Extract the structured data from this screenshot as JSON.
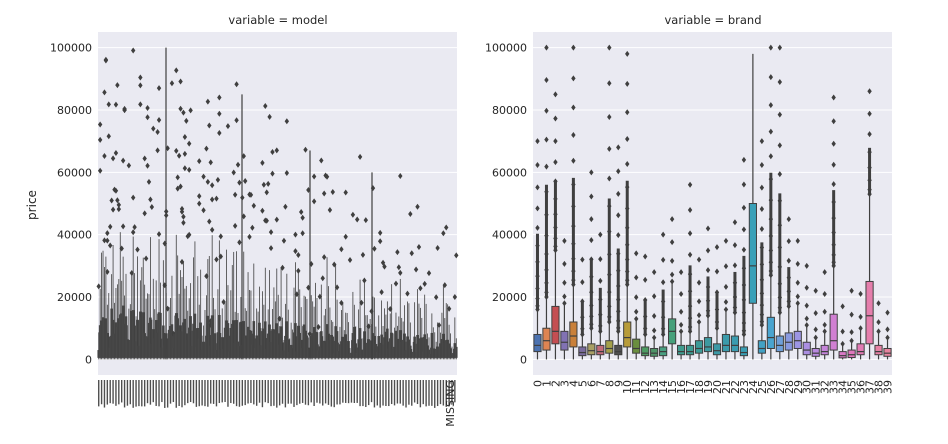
{
  "ylabel": "price",
  "chart_data": [
    {
      "type": "box",
      "title": "variable = model",
      "ylim": [
        -5000,
        105000
      ],
      "yticks": [
        0,
        20000,
        40000,
        60000,
        80000,
        100000
      ],
      "grid": true,
      "note": "several hundred overlapping boxes; x tick labels overlap and are illegible except the last",
      "xtick_last": "MISSING"
    },
    {
      "type": "box",
      "title": "variable = brand",
      "ylim": [
        -5000,
        105000
      ],
      "yticks": [
        0,
        20000,
        40000,
        60000,
        80000,
        100000
      ],
      "grid": true,
      "categories": [
        "0",
        "1",
        "2",
        "3",
        "4",
        "5",
        "6",
        "7",
        "8",
        "9",
        "10",
        "11",
        "12",
        "13",
        "14",
        "15",
        "16",
        "17",
        "18",
        "19",
        "20",
        "21",
        "22",
        "23",
        "24",
        "25",
        "26",
        "27",
        "28",
        "29",
        "30",
        "31",
        "32",
        "33",
        "34",
        "35",
        "36",
        "37",
        "38",
        "39"
      ],
      "boxes": [
        {
          "q1": 2500,
          "med": 4500,
          "q3": 8000,
          "whislo": 0,
          "whishi": 16000,
          "fliermax": 70000,
          "color": "#4c72b0"
        },
        {
          "q1": 3000,
          "med": 6000,
          "q3": 10000,
          "whislo": 0,
          "whishi": 20000,
          "fliermax": 100000,
          "color": "#dd8452"
        },
        {
          "q1": 5000,
          "med": 9000,
          "q3": 17000,
          "whislo": 0,
          "whishi": 35000,
          "fliermax": 85000,
          "color": "#c44e52"
        },
        {
          "q1": 3000,
          "med": 5500,
          "q3": 9000,
          "whislo": 0,
          "whishi": 18000,
          "fliermax": 38000,
          "color": "#8172b3"
        },
        {
          "q1": 4000,
          "med": 7500,
          "q3": 12000,
          "whislo": 0,
          "whishi": 24000,
          "fliermax": 100000,
          "color": "#c9803a"
        },
        {
          "q1": 1200,
          "med": 2200,
          "q3": 4000,
          "whislo": 0,
          "whishi": 8000,
          "fliermax": 32000,
          "color": "#7a6c9d"
        },
        {
          "q1": 1500,
          "med": 2800,
          "q3": 5000,
          "whislo": 0,
          "whishi": 10000,
          "fliermax": 60000,
          "color": "#a89f64"
        },
        {
          "q1": 1500,
          "med": 2500,
          "q3": 4500,
          "whislo": 0,
          "whishi": 9000,
          "fliermax": 40000,
          "color": "#c26b79"
        },
        {
          "q1": 2000,
          "med": 3500,
          "q3": 6000,
          "whislo": 0,
          "whishi": 12000,
          "fliermax": 100000,
          "color": "#a4a04a"
        },
        {
          "q1": 1500,
          "med": 2500,
          "q3": 4500,
          "whislo": 0,
          "whishi": 9000,
          "fliermax": 68000,
          "color": "#4f4f4f"
        },
        {
          "q1": 4000,
          "med": 7000,
          "q3": 12000,
          "whislo": 0,
          "whishi": 24000,
          "fliermax": 98000,
          "color": "#b79b3a"
        },
        {
          "q1": 2000,
          "med": 3500,
          "q3": 6500,
          "whislo": 0,
          "whishi": 13000,
          "fliermax": 34000,
          "color": "#6a8e3f"
        },
        {
          "q1": 1200,
          "med": 2000,
          "q3": 4000,
          "whislo": 0,
          "whishi": 8000,
          "fliermax": 33000,
          "color": "#4c9c62"
        },
        {
          "q1": 1000,
          "med": 2000,
          "q3": 3500,
          "whislo": 0,
          "whishi": 7000,
          "fliermax": 28000,
          "color": "#4f9468"
        },
        {
          "q1": 1200,
          "med": 2500,
          "q3": 4000,
          "whislo": 0,
          "whishi": 8000,
          "fliermax": 40000,
          "color": "#4aa081"
        },
        {
          "q1": 5000,
          "med": 9000,
          "q3": 13000,
          "whislo": 0,
          "whishi": 25000,
          "fliermax": 45000,
          "color": "#46a07b"
        },
        {
          "q1": 1500,
          "med": 2500,
          "q3": 4500,
          "whislo": 0,
          "whishi": 9000,
          "fliermax": 28000,
          "color": "#3f9c8f"
        },
        {
          "q1": 1500,
          "med": 2500,
          "q3": 4500,
          "whislo": 0,
          "whishi": 9000,
          "fliermax": 56000,
          "color": "#3e9b92"
        },
        {
          "q1": 2000,
          "med": 3500,
          "q3": 6000,
          "whislo": 0,
          "whishi": 12000,
          "fliermax": 32000,
          "color": "#3c9a97"
        },
        {
          "q1": 2500,
          "med": 4000,
          "q3": 7000,
          "whislo": 0,
          "whishi": 14000,
          "fliermax": 42000,
          "color": "#3d9aa0"
        },
        {
          "q1": 1500,
          "med": 2800,
          "q3": 5000,
          "whislo": 0,
          "whishi": 10000,
          "fliermax": 36000,
          "color": "#3c99a6"
        },
        {
          "q1": 2500,
          "med": 4500,
          "q3": 8000,
          "whislo": 0,
          "whishi": 16000,
          "fliermax": 38000,
          "color": "#3b9bab"
        },
        {
          "q1": 2500,
          "med": 4500,
          "q3": 7500,
          "whislo": 0,
          "whishi": 15000,
          "fliermax": 44000,
          "color": "#3b9cb0"
        },
        {
          "q1": 1200,
          "med": 2200,
          "q3": 4000,
          "whislo": 0,
          "whishi": 8000,
          "fliermax": 64000,
          "color": "#3a9eb4"
        },
        {
          "q1": 18000,
          "med": 30000,
          "q3": 50000,
          "whislo": 0,
          "whishi": 98000,
          "fliermax": 98000,
          "color": "#39a0b8"
        },
        {
          "q1": 2000,
          "med": 3500,
          "q3": 6000,
          "whislo": 0,
          "whishi": 11000,
          "fliermax": 70000,
          "color": "#43a1c4"
        },
        {
          "q1": 3500,
          "med": 7000,
          "q3": 13500,
          "whislo": 0,
          "whishi": 27000,
          "fliermax": 100000,
          "color": "#4aa4cf"
        },
        {
          "q1": 2500,
          "med": 4500,
          "q3": 7500,
          "whislo": 0,
          "whishi": 15000,
          "fliermax": 100000,
          "color": "#6f9fd8"
        },
        {
          "q1": 3000,
          "med": 5500,
          "q3": 8500,
          "whislo": 0,
          "whishi": 17000,
          "fliermax": 45000,
          "color": "#8a9ae0"
        },
        {
          "q1": 3500,
          "med": 6000,
          "q3": 9000,
          "whislo": 0,
          "whishi": 18000,
          "fliermax": 38000,
          "color": "#9c95e3"
        },
        {
          "q1": 1500,
          "med": 3000,
          "q3": 5500,
          "whislo": 0,
          "whishi": 11000,
          "fliermax": 30000,
          "color": "#ab8fe2"
        },
        {
          "q1": 1000,
          "med": 2000,
          "q3": 3500,
          "whislo": 0,
          "whishi": 7000,
          "fliermax": 22000,
          "color": "#b98adf"
        },
        {
          "q1": 1500,
          "med": 2500,
          "q3": 4500,
          "whislo": 0,
          "whishi": 9000,
          "fliermax": 28000,
          "color": "#c585da"
        },
        {
          "q1": 3000,
          "med": 6000,
          "q3": 14500,
          "whislo": 0,
          "whishi": 30000,
          "fliermax": 84000,
          "color": "#d07fd2"
        },
        {
          "q1": 500,
          "med": 1200,
          "q3": 2500,
          "whislo": 0,
          "whishi": 5000,
          "fliermax": 17000,
          "color": "#da7ac7"
        },
        {
          "q1": 600,
          "med": 1500,
          "q3": 3000,
          "whislo": 0,
          "whishi": 6000,
          "fliermax": 22000,
          "color": "#e078bc"
        },
        {
          "q1": 1500,
          "med": 2500,
          "q3": 5000,
          "whislo": 0,
          "whishi": 10000,
          "fliermax": 21000,
          "color": "#e37bb4"
        },
        {
          "q1": 5000,
          "med": 14000,
          "q3": 25000,
          "whislo": 0,
          "whishi": 53000,
          "fliermax": 86000,
          "color": "#e57eac"
        },
        {
          "q1": 1500,
          "med": 2500,
          "q3": 4500,
          "whislo": 0,
          "whishi": 9000,
          "fliermax": 18000,
          "color": "#e681a5"
        },
        {
          "q1": 1000,
          "med": 2000,
          "q3": 3500,
          "whislo": 0,
          "whishi": 7000,
          "fliermax": 15000,
          "color": "#e6849f"
        }
      ]
    }
  ]
}
